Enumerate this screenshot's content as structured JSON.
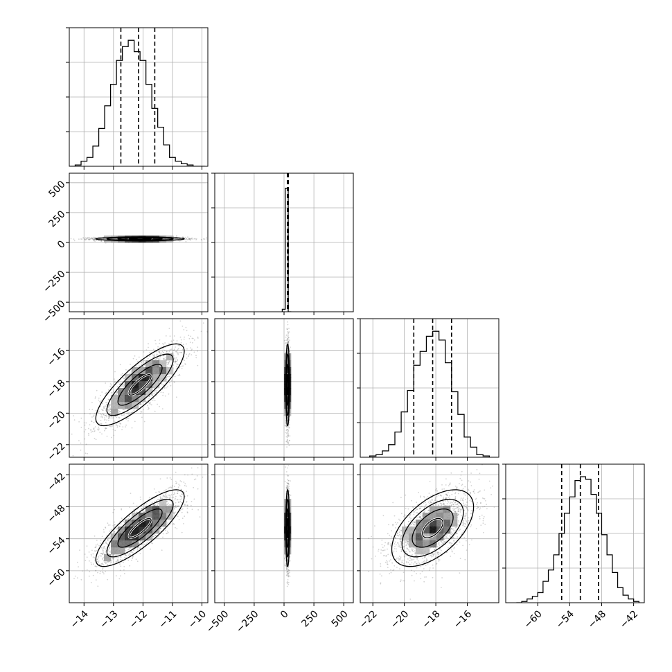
{
  "figure": {
    "type": "corner-plot",
    "parameters": 4,
    "background": "#ffffff",
    "frame_color": "#000000",
    "grid_color": "#b0b0b0",
    "point_color": "#808080",
    "hist_color": "#000000",
    "quantile_style": "dashed"
  },
  "chart_data": [
    {
      "type": "histogram",
      "panel": "0-0",
      "param": 0,
      "xlim": [
        -14.5,
        -9.8
      ],
      "ylim": [
        0,
        1.1
      ],
      "log_x": false,
      "xticks": [
        -14,
        -13,
        -12,
        -11,
        -10
      ],
      "xtick_labels": [
        "−14",
        "−13",
        "−12",
        "−11",
        "−10"
      ],
      "bins": [
        -14.5,
        -14.3,
        -14.1,
        -13.9,
        -13.7,
        -13.5,
        -13.3,
        -13.1,
        -12.9,
        -12.7,
        -12.5,
        -12.3,
        -12.1,
        -11.9,
        -11.7,
        -11.5,
        -11.3,
        -11.1,
        -10.9,
        -10.7,
        -10.5,
        -10.3,
        -10.1,
        -9.9
      ],
      "counts": [
        0.0,
        0.01,
        0.04,
        0.07,
        0.16,
        0.3,
        0.48,
        0.65,
        0.84,
        0.95,
        1.0,
        0.91,
        0.84,
        0.65,
        0.46,
        0.31,
        0.17,
        0.07,
        0.04,
        0.02,
        0.01,
        0.0,
        0.0
      ],
      "quantiles": [
        -12.75,
        -12.15,
        -11.6
      ],
      "grid": true
    },
    {
      "type": "histogram",
      "panel": "1-1",
      "param": 1,
      "xlim": [
        -580,
        580
      ],
      "ylim": [
        0,
        1.1
      ],
      "xticks": [
        -500,
        -250,
        0,
        250,
        500
      ],
      "xtick_labels": [
        "−500",
        "−250",
        "0",
        "250",
        "500"
      ],
      "bins": [
        -15,
        10,
        35,
        60
      ],
      "counts": [
        0.02,
        0.98,
        0.0
      ],
      "quantiles": [
        28,
        32,
        36
      ],
      "grid": true
    },
    {
      "type": "histogram",
      "panel": "2-2",
      "param": 2,
      "xlim": [
        -22.8,
        -14.0
      ],
      "ylim": [
        0,
        1.1
      ],
      "xticks": [
        -22,
        -20,
        -18,
        -16
      ],
      "xtick_labels": [
        "−22",
        "−20",
        "−18",
        "−16"
      ],
      "bins": [
        -22.2,
        -21.8,
        -21.4,
        -21.0,
        -20.6,
        -20.2,
        -19.8,
        -19.4,
        -19.0,
        -18.6,
        -18.2,
        -17.8,
        -17.4,
        -17.0,
        -16.6,
        -16.2,
        -15.8,
        -15.4,
        -15.0,
        -14.6
      ],
      "counts": [
        0.01,
        0.02,
        0.05,
        0.1,
        0.2,
        0.36,
        0.53,
        0.73,
        0.84,
        0.96,
        1.0,
        0.93,
        0.75,
        0.52,
        0.34,
        0.16,
        0.08,
        0.02,
        0.01
      ],
      "quantiles": [
        -19.4,
        -18.2,
        -17.0
      ],
      "grid": true
    },
    {
      "type": "histogram",
      "panel": "3-3",
      "param": 3,
      "xlim": [
        -66,
        -40
      ],
      "ylim": [
        0,
        1.1
      ],
      "xticks": [
        -60,
        -54,
        -48,
        -42
      ],
      "xtick_labels": [
        "−60",
        "−54",
        "−48",
        "−42"
      ],
      "bins": [
        -64,
        -63,
        -62,
        -61,
        -60,
        -59,
        -58,
        -57,
        -56,
        -55,
        -54,
        -53,
        -52,
        -51,
        -50,
        -49,
        -48,
        -47,
        -46,
        -45,
        -44,
        -43,
        -42,
        -41
      ],
      "counts": [
        0.0,
        0.01,
        0.03,
        0.05,
        0.08,
        0.17,
        0.26,
        0.38,
        0.55,
        0.71,
        0.84,
        0.97,
        1.0,
        0.98,
        0.86,
        0.71,
        0.54,
        0.38,
        0.24,
        0.12,
        0.06,
        0.03,
        0.01
      ],
      "quantiles": [
        -55.5,
        -52.0,
        -48.6
      ],
      "grid": true
    },
    {
      "type": "scatter-density",
      "panel": "1-0",
      "x_param": 0,
      "y_param": 1,
      "xlim": [
        -14.5,
        -9.8
      ],
      "ylim": [
        -580,
        580
      ],
      "yticks": [
        -500,
        -250,
        0,
        250,
        500
      ],
      "ytick_labels": [
        "−500",
        "−250",
        "0",
        "250",
        "500"
      ],
      "mean": [
        -12.1,
        30
      ],
      "sd": [
        0.75,
        8
      ],
      "corr": 0.0,
      "contour_sigmas": [
        0.5,
        1.0,
        1.5,
        2.0
      ]
    },
    {
      "type": "scatter-density",
      "panel": "2-0",
      "x_param": 0,
      "y_param": 2,
      "xlim": [
        -14.5,
        -9.8
      ],
      "ylim": [
        -22.8,
        -14.0
      ],
      "yticks": [
        -22,
        -20,
        -18,
        -16
      ],
      "ytick_labels": [
        "−22",
        "−20",
        "−18",
        "−16"
      ],
      "mean": [
        -12.1,
        -18.2
      ],
      "sd": [
        0.75,
        1.3
      ],
      "corr": 0.82,
      "contour_sigmas": [
        0.5,
        1.0,
        1.5,
        2.0
      ]
    },
    {
      "type": "scatter-density",
      "panel": "2-1",
      "x_param": 1,
      "y_param": 2,
      "xlim": [
        -580,
        580
      ],
      "ylim": [
        -22.8,
        -14.0
      ],
      "mean": [
        30,
        -18.2
      ],
      "sd": [
        8,
        1.3
      ],
      "corr": 0.0,
      "contour_sigmas": [
        0.5,
        1.0,
        1.5,
        2.0
      ]
    },
    {
      "type": "scatter-density",
      "panel": "3-0",
      "x_param": 0,
      "y_param": 3,
      "xlim": [
        -14.5,
        -9.8
      ],
      "ylim": [
        -66,
        -40
      ],
      "yticks": [
        -60,
        -54,
        -48,
        -42
      ],
      "ytick_labels": [
        "−60",
        "−54",
        "−48",
        "−42"
      ],
      "mean": [
        -12.1,
        -52.0
      ],
      "sd": [
        0.75,
        3.6
      ],
      "corr": 0.82,
      "contour_sigmas": [
        0.5,
        1.0,
        1.5,
        2.0
      ]
    },
    {
      "type": "scatter-density",
      "panel": "3-1",
      "x_param": 1,
      "y_param": 3,
      "xlim": [
        -580,
        580
      ],
      "ylim": [
        -66,
        -40
      ],
      "mean": [
        30,
        -52.0
      ],
      "sd": [
        8,
        3.6
      ],
      "corr": 0.0,
      "contour_sigmas": [
        0.5,
        1.0,
        1.5,
        2.0
      ]
    },
    {
      "type": "scatter-density",
      "panel": "3-2",
      "x_param": 2,
      "y_param": 3,
      "xlim": [
        -22.8,
        -14.0
      ],
      "ylim": [
        -66,
        -40
      ],
      "mean": [
        -18.2,
        -52.0
      ],
      "sd": [
        1.3,
        3.6
      ],
      "corr": 0.55,
      "contour_sigmas": [
        0.5,
        1.0,
        1.5,
        2.0
      ]
    }
  ]
}
